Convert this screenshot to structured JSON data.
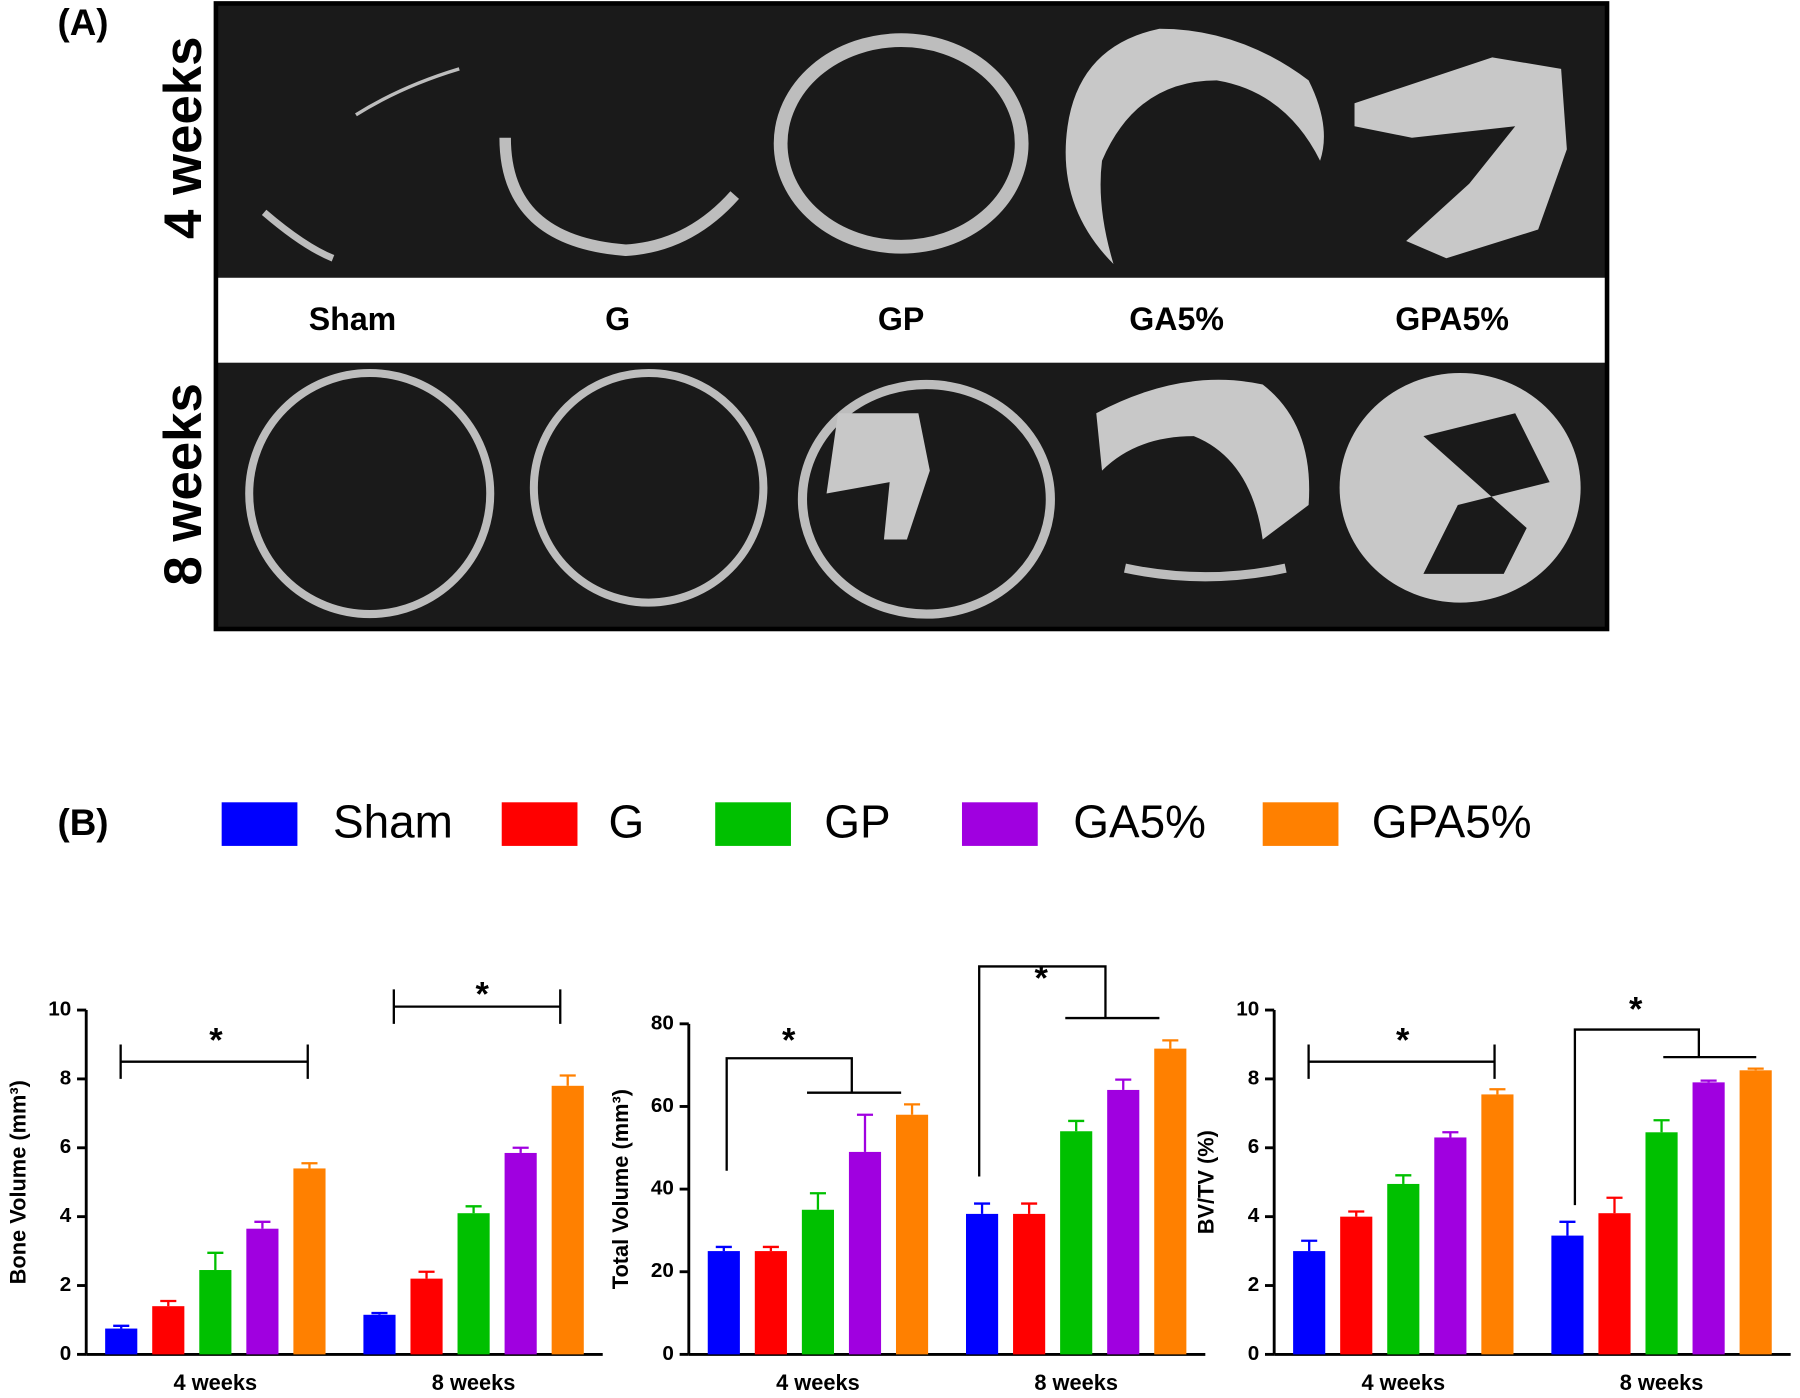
{
  "panel_a": {
    "label": "(A)",
    "rows": [
      "4 weeks",
      "8 weeks"
    ],
    "columns": [
      "Sham",
      "G",
      "GP",
      "GA5%",
      "GPA5%"
    ]
  },
  "panel_b_label": "(B)",
  "chart_data": [
    {
      "type": "bar",
      "y_label": "Bone Volume (mm³)",
      "categories": [
        "4 weeks",
        "8 weeks"
      ],
      "ylim": [
        0,
        10
      ],
      "yticks": [
        0,
        2,
        4,
        6,
        8,
        10
      ],
      "annotations": [
        "*",
        "*"
      ],
      "series": [
        {
          "name": "Sham",
          "color": "#0000ff",
          "values": [
            0.75,
            1.15
          ],
          "errors": [
            0.08,
            0.05
          ]
        },
        {
          "name": "G",
          "color": "#ff0000",
          "values": [
            1.4,
            2.2
          ],
          "errors": [
            0.15,
            0.2
          ]
        },
        {
          "name": "GP",
          "color": "#00c000",
          "values": [
            2.45,
            4.1
          ],
          "errors": [
            0.5,
            0.2
          ]
        },
        {
          "name": "GA5%",
          "color": "#a000e0",
          "values": [
            3.65,
            5.85
          ],
          "errors": [
            0.2,
            0.15
          ]
        },
        {
          "name": "GPA5%",
          "color": "#ff8000",
          "values": [
            5.4,
            7.8
          ],
          "errors": [
            0.15,
            0.3
          ]
        }
      ]
    },
    {
      "type": "bar",
      "y_label": "Total Volume (mm³)",
      "categories": [
        "4 weeks",
        "8 weeks"
      ],
      "ylim": [
        0,
        80
      ],
      "yticks": [
        0,
        20,
        40,
        60,
        80
      ],
      "annotations": [
        "*",
        "*"
      ],
      "series": [
        {
          "name": "Sham",
          "color": "#0000ff",
          "values": [
            25,
            34
          ],
          "errors": [
            1,
            2.5
          ]
        },
        {
          "name": "G",
          "color": "#ff0000",
          "values": [
            25,
            34
          ],
          "errors": [
            1,
            2.5
          ]
        },
        {
          "name": "GP",
          "color": "#00c000",
          "values": [
            35,
            54
          ],
          "errors": [
            4,
            2.5
          ]
        },
        {
          "name": "GA5%",
          "color": "#a000e0",
          "values": [
            49,
            64
          ],
          "errors": [
            9,
            2.5
          ]
        },
        {
          "name": "GPA5%",
          "color": "#ff8000",
          "values": [
            58,
            74
          ],
          "errors": [
            2.5,
            2
          ]
        }
      ]
    },
    {
      "type": "bar",
      "y_label": "BV/TV (%)",
      "categories": [
        "4 weeks",
        "8 weeks"
      ],
      "ylim": [
        0,
        10
      ],
      "yticks": [
        0,
        2,
        4,
        6,
        8,
        10
      ],
      "annotations": [
        "*",
        "*"
      ],
      "series": [
        {
          "name": "Sham",
          "color": "#0000ff",
          "values": [
            3.0,
            3.45
          ],
          "errors": [
            0.3,
            0.4
          ]
        },
        {
          "name": "G",
          "color": "#ff0000",
          "values": [
            4.0,
            4.1
          ],
          "errors": [
            0.15,
            0.45
          ]
        },
        {
          "name": "GP",
          "color": "#00c000",
          "values": [
            4.95,
            6.45
          ],
          "errors": [
            0.25,
            0.35
          ]
        },
        {
          "name": "GA5%",
          "color": "#a000e0",
          "values": [
            6.3,
            7.9
          ],
          "errors": [
            0.15,
            0.05
          ]
        },
        {
          "name": "GPA5%",
          "color": "#ff8000",
          "values": [
            7.55,
            8.25
          ],
          "errors": [
            0.15,
            0.05
          ]
        }
      ]
    }
  ]
}
